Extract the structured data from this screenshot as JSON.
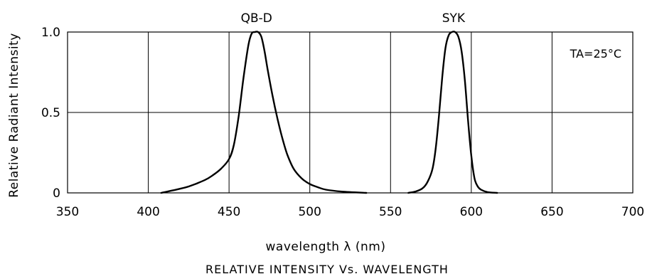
{
  "chart_data": {
    "type": "line",
    "title": "RELATIVE INTENSITY Vs. WAVELENGTH",
    "xlabel": "wavelength λ (nm)",
    "ylabel": "Relative Radiant Intensity",
    "xlim": [
      350,
      700
    ],
    "ylim": [
      0,
      1.0
    ],
    "x_ticks": [
      "350",
      "400",
      "450",
      "500",
      "550",
      "600",
      "650",
      "700"
    ],
    "x_tick_values": [
      350,
      400,
      450,
      500,
      550,
      600,
      650,
      700
    ],
    "y_ticks": [
      "0",
      "0.5",
      "1.0"
    ],
    "y_tick_values": [
      0,
      0.5,
      1.0
    ],
    "grid": true,
    "annotation": "TA=25°C",
    "series": [
      {
        "name": "QB-D",
        "x": [
          408,
          415,
          425,
          435,
          440,
          445,
          450,
          453,
          456,
          459,
          462,
          464,
          466,
          468,
          470,
          472,
          474,
          477,
          480,
          483,
          486,
          490,
          495,
          500,
          505,
          510,
          520,
          535
        ],
        "y": [
          0,
          0.015,
          0.04,
          0.08,
          0.11,
          0.15,
          0.21,
          0.3,
          0.48,
          0.72,
          0.92,
          0.99,
          1.0,
          1.0,
          0.97,
          0.88,
          0.76,
          0.6,
          0.46,
          0.34,
          0.24,
          0.15,
          0.09,
          0.055,
          0.035,
          0.02,
          0.008,
          0
        ]
      },
      {
        "name": "SYK",
        "x": [
          561,
          566,
          570,
          573,
          576,
          578,
          580,
          582,
          584,
          586,
          588,
          590,
          592,
          594,
          596,
          598,
          600,
          602,
          604,
          606,
          610,
          616
        ],
        "y": [
          0,
          0.01,
          0.03,
          0.07,
          0.15,
          0.28,
          0.48,
          0.72,
          0.9,
          0.98,
          1.0,
          1.0,
          0.97,
          0.88,
          0.7,
          0.45,
          0.23,
          0.09,
          0.04,
          0.02,
          0.005,
          0
        ]
      }
    ]
  }
}
